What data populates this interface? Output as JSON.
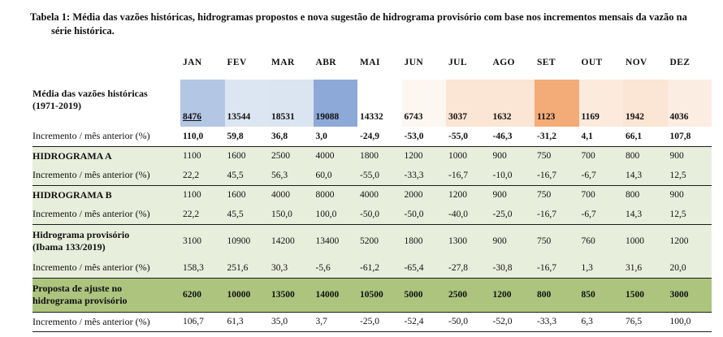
{
  "caption": {
    "text": "Tabela 1: Média das vazões históricas, hidrogramas propostos e nova sugestão de hidrograma provisório com base nos incrementos mensais da vazão na série histórica."
  },
  "months": [
    "JAN",
    "FEV",
    "MAR",
    "ABR",
    "MAI",
    "JUN",
    "JUL",
    "AGO",
    "SET",
    "OUT",
    "NOV",
    "DEZ"
  ],
  "rows": [
    {
      "label": "Média das vazões históricas",
      "label2": "(1971-2019)",
      "values": [
        "8476",
        "13544",
        "18531",
        "19088",
        "14332",
        "6743",
        "3037",
        "1632",
        "1123",
        "1169",
        "1942",
        "4036"
      ]
    },
    {
      "label": "Incremento / mês anterior (%)",
      "values": [
        "110,0",
        "59,8",
        "36,8",
        "3,0",
        "-24,9",
        "-53,0",
        "-55,0",
        "-46,3",
        "-31,2",
        "4,1",
        "66,1",
        "107,8"
      ]
    },
    {
      "label": "HIDROGRAMA A",
      "values": [
        "1100",
        "1600",
        "2500",
        "4000",
        "1800",
        "1200",
        "1000",
        "900",
        "750",
        "700",
        "800",
        "900"
      ]
    },
    {
      "label": "Incremento / mês anterior (%)",
      "values": [
        "22,2",
        "45,5",
        "56,3",
        "60,0",
        "-55,0",
        "-33,3",
        "-16,7",
        "-10,0",
        "-16,7",
        "-6,7",
        "14,3",
        "12,5"
      ]
    },
    {
      "label": "HIDROGRAMA B",
      "values": [
        "1100",
        "1600",
        "4000",
        "8000",
        "4000",
        "2000",
        "1200",
        "900",
        "750",
        "700",
        "800",
        "900"
      ]
    },
    {
      "label": "Incremento / mês anterior (%)",
      "values": [
        "22,2",
        "45,5",
        "150,0",
        "100,0",
        "-50,0",
        "-50,0",
        "-40,0",
        "-25,0",
        "-16,7",
        "-6,7",
        "14,3",
        "12,5"
      ]
    },
    {
      "label": "Hidrograma provisório",
      "label2": "(Ibama 133/2019)",
      "values": [
        "3100",
        "10900",
        "14200",
        "13400",
        "5200",
        "1800",
        "1300",
        "900",
        "750",
        "760",
        "1000",
        "1200"
      ]
    },
    {
      "label": "Incremento / mês anterior (%)",
      "values": [
        "158,3",
        "251,6",
        "30,3",
        "-5,6",
        "-61,2",
        "-65,4",
        "-27,8",
        "-30,8",
        "-16,7",
        "1,3",
        "31,6",
        "20,0"
      ]
    },
    {
      "label": "Proposta de ajuste no",
      "label2": "hidrograma provisório",
      "values": [
        "6200",
        "10000",
        "13500",
        "14000",
        "10500",
        "5000",
        "2500",
        "1200",
        "800",
        "850",
        "1500",
        "3000"
      ]
    },
    {
      "label": "Incremento / mês anterior (%)",
      "values": [
        "106,7",
        "61,3",
        "35,0",
        "3,7",
        "-25,0",
        "-52,4",
        "-50,0",
        "-52,0",
        "-33,3",
        "6,3",
        "76,5",
        "100,0"
      ]
    }
  ],
  "colors": {
    "light_green": "#e8eedc",
    "dark_green": "#adc47f",
    "rule": "#1c1c1c",
    "text": "#111111"
  },
  "scale_colors": [
    "#b3c6e3",
    "#dce6f2",
    "#dbe5f1",
    "#8ca9d8",
    "#ffffff",
    "#fdf7f1",
    "#fbe5d4",
    "#fbe5d4",
    "#f3ab77",
    "#fceadd",
    "#fbe5d4",
    "#fcede2"
  ]
}
